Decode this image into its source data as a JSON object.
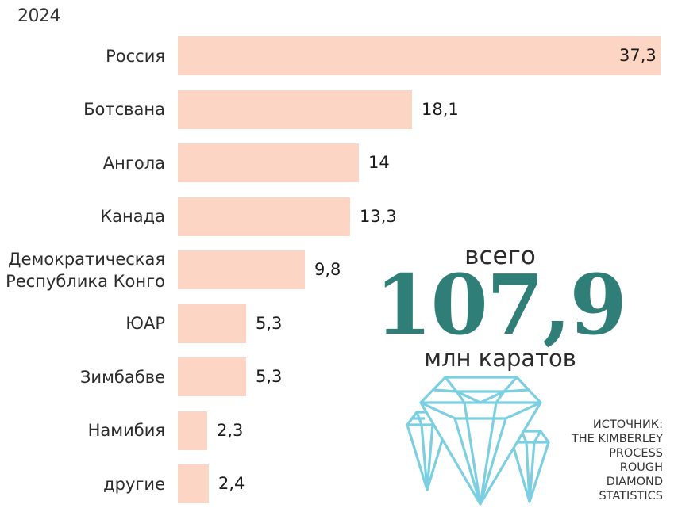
{
  "header": {
    "year": "2024"
  },
  "chart_data": {
    "type": "bar",
    "orientation": "horizontal",
    "categories": [
      "Россия",
      "Ботсвана",
      "Ангола",
      "Канада",
      "Демократическая Республика Конго",
      "ЮАР",
      "Зимбабве",
      "Намибия",
      "другие"
    ],
    "category_lines": [
      [
        "Россия"
      ],
      [
        "Ботсвана"
      ],
      [
        "Ангола"
      ],
      [
        "Канада"
      ],
      [
        "Демократическая",
        "Республика Конго"
      ],
      [
        "ЮАР"
      ],
      [
        "Зимбабве"
      ],
      [
        "Намибия"
      ],
      [
        "другие"
      ]
    ],
    "values": [
      37.3,
      18.1,
      14,
      13.3,
      9.8,
      5.3,
      5.3,
      2.3,
      2.4
    ],
    "value_labels": [
      "37,3",
      "18,1",
      "14",
      "13,3",
      "9,8",
      "5,3",
      "5,3",
      "2,3",
      "2,4"
    ],
    "xlim": [
      0,
      37.3
    ],
    "grid": false,
    "colors": {
      "bar": "#fcd5c5"
    }
  },
  "total": {
    "caption": "всего",
    "value": "107,9",
    "unit": "млн каратов"
  },
  "source": {
    "lines": [
      "ИСТОЧНИК:",
      "THE KIMBERLEY",
      "PROCESS",
      "ROUGH",
      "DIAMOND",
      "STATISTICS"
    ]
  },
  "colors": {
    "accent": "#2f7f78",
    "diamond_outline": "#7ccfe0"
  },
  "icons": {
    "decoration": "diamond-icon"
  }
}
